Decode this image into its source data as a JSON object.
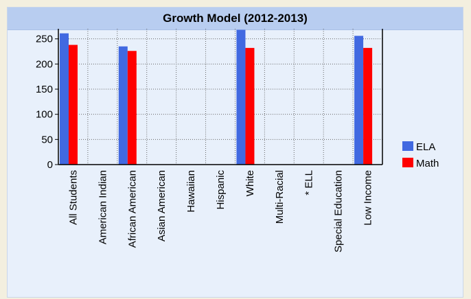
{
  "chart_data": {
    "type": "bar",
    "title": "Growth Model (2012-2013)",
    "xlabel": "",
    "ylabel": "",
    "ylim": [
      0,
      270
    ],
    "yticks": [
      0,
      50,
      100,
      150,
      200,
      250
    ],
    "grid": true,
    "legend_position": "right",
    "categories": [
      "All Students",
      "American Indian",
      "African American",
      "Asian American",
      "Hawaiian",
      "Hispanic",
      "White",
      "Multi-Racial",
      "* ELL",
      "Special Education",
      "Low Income"
    ],
    "series": [
      {
        "name": "ELA",
        "color": "#4169e1",
        "values": [
          261,
          null,
          235,
          null,
          null,
          null,
          268,
          null,
          null,
          null,
          256
        ]
      },
      {
        "name": "Math",
        "color": "#ff0000",
        "values": [
          238,
          null,
          226,
          null,
          null,
          null,
          232,
          null,
          null,
          null,
          232
        ]
      }
    ]
  }
}
